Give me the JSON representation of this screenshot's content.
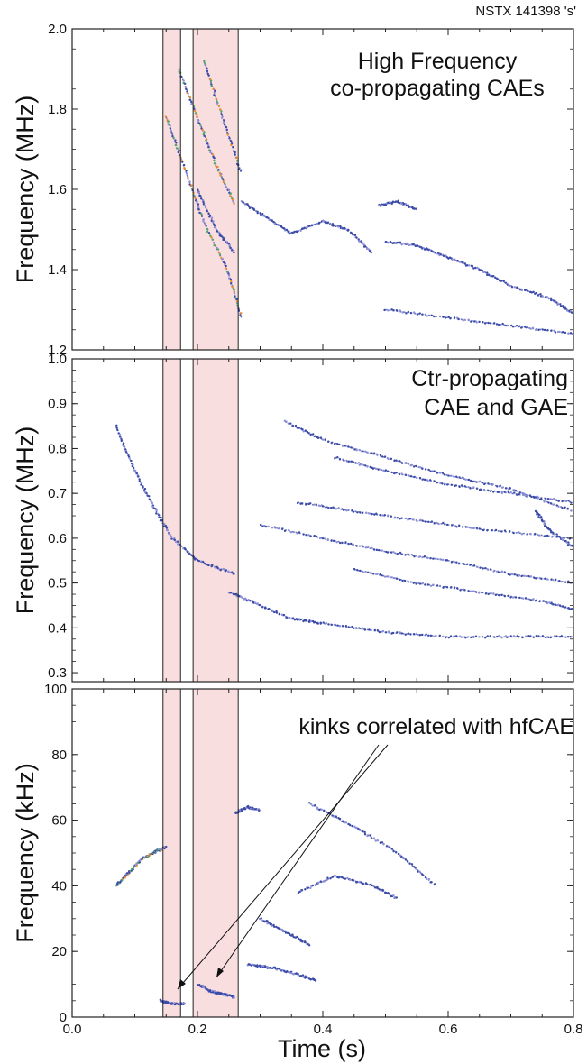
{
  "title": "NSTX 141398 's'",
  "xlabel": "Time (s)",
  "colors": {
    "mode": "#3a4aa8",
    "mode_light": "#8e8fd8",
    "hot": "#f08a2a",
    "green": "#4fa86a",
    "shade": "#f8dede"
  },
  "chart_data": [
    {
      "type": "scatter",
      "panel": "top",
      "ylabel": "Frequency (MHz)",
      "xlim": [
        0.0,
        0.8
      ],
      "ylim": [
        1.2,
        2.0
      ],
      "yticks": [
        "1.2",
        "1.4",
        "1.6",
        "1.8",
        "2.0"
      ],
      "annotation": [
        "High Frequency",
        "co-propagating CAEs"
      ],
      "series": [
        {
          "x": [
            0.15,
            0.18,
            0.21,
            0.25,
            0.27
          ],
          "y": [
            1.78,
            1.65,
            1.52,
            1.39,
            1.28
          ]
        },
        {
          "x": [
            0.17,
            0.2,
            0.23,
            0.26
          ],
          "y": [
            1.9,
            1.78,
            1.66,
            1.56
          ]
        },
        {
          "x": [
            0.21,
            0.24,
            0.27
          ],
          "y": [
            1.92,
            1.78,
            1.64
          ]
        },
        {
          "x": [
            0.2,
            0.23,
            0.26
          ],
          "y": [
            1.6,
            1.5,
            1.44
          ]
        },
        {
          "x": [
            0.27,
            0.31,
            0.35,
            0.4,
            0.44,
            0.48
          ],
          "y": [
            1.57,
            1.53,
            1.49,
            1.52,
            1.5,
            1.44
          ]
        },
        {
          "x": [
            0.5,
            0.55,
            0.6,
            0.65,
            0.7,
            0.76,
            0.8
          ],
          "y": [
            1.47,
            1.46,
            1.43,
            1.4,
            1.36,
            1.33,
            1.29
          ]
        },
        {
          "x": [
            0.49,
            0.52,
            0.55
          ],
          "y": [
            1.56,
            1.57,
            1.55
          ]
        },
        {
          "x": [
            0.5,
            0.6,
            0.7,
            0.8
          ],
          "y": [
            1.3,
            1.28,
            1.26,
            1.24
          ]
        }
      ]
    },
    {
      "type": "scatter",
      "panel": "middle",
      "ylabel": "Frequency (MHz)",
      "xlim": [
        0.0,
        0.8
      ],
      "ylim": [
        0.28,
        1.0
      ],
      "yticks": [
        "0.3",
        "0.4",
        "0.5",
        "0.6",
        "0.7",
        "0.8",
        "0.9",
        "1.0"
      ],
      "annotation": [
        "Ctr-propagating",
        "CAE and GAE"
      ],
      "series": [
        {
          "x": [
            0.07,
            0.1,
            0.13,
            0.16,
            0.2,
            0.26
          ],
          "y": [
            0.85,
            0.75,
            0.67,
            0.6,
            0.55,
            0.52
          ]
        },
        {
          "x": [
            0.25,
            0.3,
            0.35,
            0.4,
            0.5,
            0.6,
            0.7,
            0.8
          ],
          "y": [
            0.48,
            0.45,
            0.42,
            0.41,
            0.39,
            0.38,
            0.38,
            0.38
          ]
        },
        {
          "x": [
            0.34,
            0.4,
            0.5,
            0.6,
            0.7,
            0.8
          ],
          "y": [
            0.86,
            0.82,
            0.78,
            0.74,
            0.71,
            0.66
          ]
        },
        {
          "x": [
            0.3,
            0.4,
            0.5,
            0.6,
            0.7,
            0.8
          ],
          "y": [
            0.63,
            0.6,
            0.57,
            0.55,
            0.52,
            0.5
          ]
        },
        {
          "x": [
            0.36,
            0.45,
            0.55,
            0.65,
            0.8
          ],
          "y": [
            0.68,
            0.66,
            0.64,
            0.62,
            0.6
          ]
        },
        {
          "x": [
            0.42,
            0.5,
            0.6,
            0.7,
            0.8
          ],
          "y": [
            0.78,
            0.75,
            0.72,
            0.7,
            0.68
          ]
        },
        {
          "x": [
            0.45,
            0.55,
            0.65,
            0.75,
            0.8
          ],
          "y": [
            0.53,
            0.5,
            0.48,
            0.46,
            0.44
          ]
        },
        {
          "x": [
            0.74,
            0.76,
            0.8
          ],
          "y": [
            0.66,
            0.62,
            0.58
          ]
        }
      ]
    },
    {
      "type": "scatter",
      "panel": "bottom",
      "ylabel": "Frequency (kHz)",
      "xlim": [
        0.0,
        0.8
      ],
      "ylim": [
        0,
        100
      ],
      "yticks": [
        "0",
        "20",
        "40",
        "60",
        "80",
        "100"
      ],
      "xticks": [
        "0.0",
        "0.2",
        "0.4",
        "0.6",
        "0.8"
      ],
      "annotation": [
        "kinks correlated with hfCAE"
      ],
      "series": [
        {
          "x": [
            0.07,
            0.09,
            0.11,
            0.13,
            0.15
          ],
          "y": [
            40,
            44,
            48,
            50,
            52
          ]
        },
        {
          "x": [
            0.26,
            0.28,
            0.3
          ],
          "y": [
            62,
            64,
            63
          ]
        },
        {
          "x": [
            0.36,
            0.42,
            0.48,
            0.52
          ],
          "y": [
            38,
            43,
            40,
            36
          ]
        },
        {
          "x": [
            0.38,
            0.45,
            0.52,
            0.58
          ],
          "y": [
            65,
            58,
            50,
            40
          ]
        },
        {
          "x": [
            0.28,
            0.32,
            0.36,
            0.39
          ],
          "y": [
            16,
            15,
            13,
            11
          ]
        },
        {
          "x": [
            0.3,
            0.34,
            0.38
          ],
          "y": [
            30,
            26,
            22
          ]
        },
        {
          "x": [
            0.2,
            0.22,
            0.24,
            0.26
          ],
          "y": [
            10,
            8,
            7,
            6
          ]
        },
        {
          "x": [
            0.14,
            0.16,
            0.18
          ],
          "y": [
            5,
            4,
            4
          ]
        }
      ]
    }
  ],
  "shaded_regions_x": [
    [
      0.145,
      0.173
    ],
    [
      0.193,
      0.265
    ]
  ],
  "vlines_x": [
    0.145,
    0.173,
    0.193,
    0.265
  ]
}
